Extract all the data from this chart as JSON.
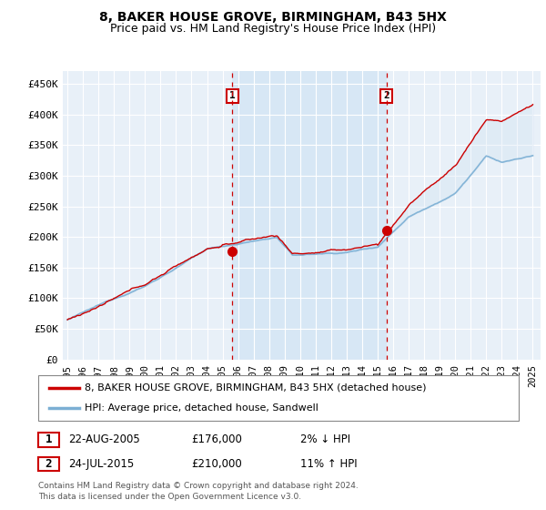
{
  "title1": "8, BAKER HOUSE GROVE, BIRMINGHAM, B43 5HX",
  "title2": "Price paid vs. HM Land Registry's House Price Index (HPI)",
  "ylabel_ticks": [
    "£0",
    "£50K",
    "£100K",
    "£150K",
    "£200K",
    "£250K",
    "£300K",
    "£350K",
    "£400K",
    "£450K"
  ],
  "ytick_values": [
    0,
    50000,
    100000,
    150000,
    200000,
    250000,
    300000,
    350000,
    400000,
    450000
  ],
  "ylim": [
    0,
    470000
  ],
  "xlim_start": 1994.7,
  "xlim_end": 2025.5,
  "xtick_years": [
    1995,
    1996,
    1997,
    1998,
    1999,
    2000,
    2001,
    2002,
    2003,
    2004,
    2005,
    2006,
    2007,
    2008,
    2009,
    2010,
    2011,
    2012,
    2013,
    2014,
    2015,
    2016,
    2017,
    2018,
    2019,
    2020,
    2021,
    2022,
    2023,
    2024,
    2025
  ],
  "sale1_x": 2005.64,
  "sale1_y": 176000,
  "sale1_label": "1",
  "sale1_date": "22-AUG-2005",
  "sale1_price": "£176,000",
  "sale1_hpi": "2% ↓ HPI",
  "sale2_x": 2015.56,
  "sale2_y": 210000,
  "sale2_label": "2",
  "sale2_date": "24-JUL-2015",
  "sale2_price": "£210,000",
  "sale2_hpi": "11% ↑ HPI",
  "legend_line1": "8, BAKER HOUSE GROVE, BIRMINGHAM, B43 5HX (detached house)",
  "legend_line2": "HPI: Average price, detached house, Sandwell",
  "footer": "Contains HM Land Registry data © Crown copyright and database right 2024.\nThis data is licensed under the Open Government Licence v3.0.",
  "hpi_color": "#7bafd4",
  "price_color": "#cc0000",
  "plot_bg": "#e8f0f8",
  "between_bg": "#d0e4f5",
  "grid_color": "#ffffff",
  "vline_color": "#cc0000",
  "fill_color": "#c8ddf0"
}
